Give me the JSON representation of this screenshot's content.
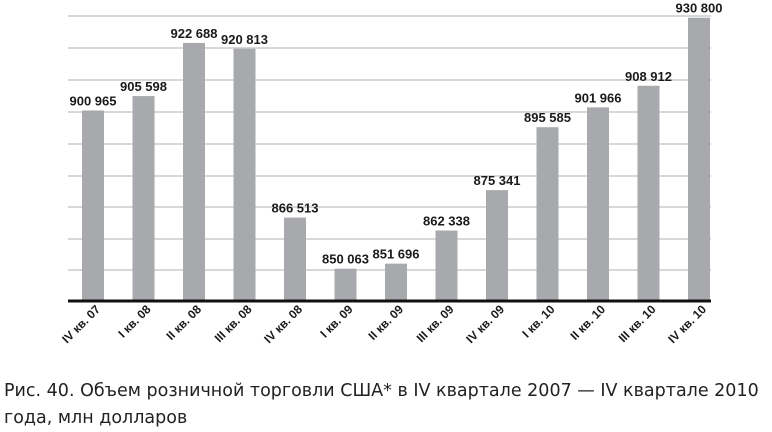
{
  "chart_data": {
    "type": "bar",
    "categories": [
      "IV кв. 07",
      "I кв. 08",
      "II кв. 08",
      "III кв. 08",
      "IV кв. 08",
      "I кв. 09",
      "II кв. 09",
      "III кв. 09",
      "IV кв. 09",
      "I кв. 10",
      "II кв. 10",
      "III кв. 10",
      "IV кв. 10"
    ],
    "values": [
      900965,
      905598,
      922688,
      920813,
      866513,
      850063,
      851696,
      862338,
      875341,
      895585,
      901966,
      908912,
      930800
    ],
    "labels": [
      "900 965",
      "905 598",
      "922 688",
      "920 813",
      "866 513",
      "850 063",
      "851 696",
      "862 338",
      "875 341",
      "895 585",
      "901 966",
      "908 912",
      "930 800"
    ],
    "ylim": [
      840000,
      932000
    ],
    "grid": true,
    "bar_color": "#a7a9ac",
    "grid_color": "#b0b0b0"
  },
  "caption": "Рис. 40. Объем розничной торговли США* в IV квартале 2007 — IV квартале 2010 года, млн долларов"
}
